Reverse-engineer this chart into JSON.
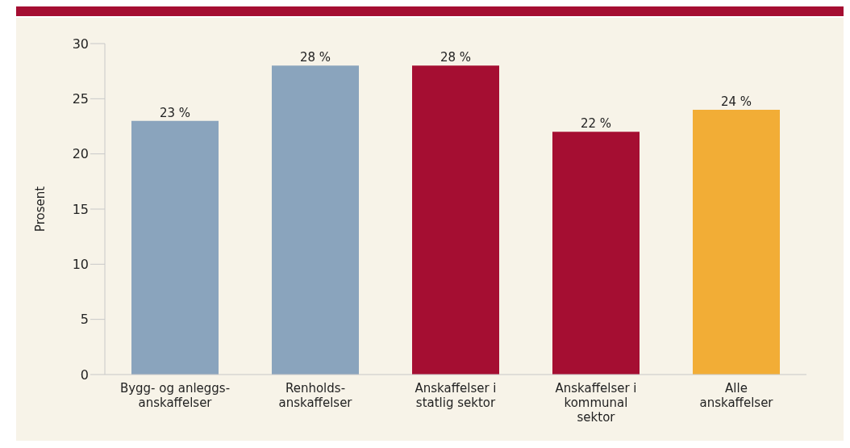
{
  "chart_data": {
    "type": "bar",
    "ylabel": "Prosent",
    "categories": [
      "Bygg- og anleggs-\nanskaffelser",
      "Renholds-\nanskaffelser",
      "Anskaffelser i\nstatlig sektor",
      "Anskaffelser i\nkommunal\nsektor",
      "Alle\nanskaffelser"
    ],
    "values": [
      23,
      28,
      28,
      22,
      24
    ],
    "colors": [
      "#8aa4bd",
      "#8aa4bd",
      "#a50e32",
      "#a50e32",
      "#f2ad36"
    ],
    "value_labels": [
      "23 %",
      "28 %",
      "28 %",
      "22 %",
      "24 %"
    ],
    "ylim": [
      0,
      30
    ],
    "yticks": [
      0,
      5,
      10,
      15,
      20,
      25,
      30
    ],
    "grid": false
  }
}
